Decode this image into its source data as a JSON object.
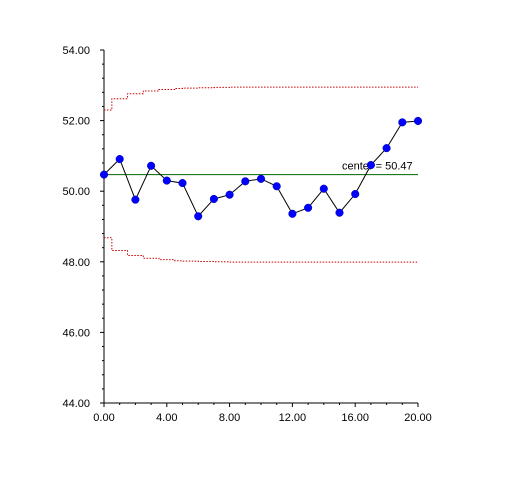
{
  "chart_data": {
    "type": "line",
    "title": "",
    "xlabel": "",
    "ylabel": "",
    "xlim": [
      0,
      20
    ],
    "ylim": [
      44,
      54
    ],
    "x_ticks": [
      0,
      4,
      8,
      12,
      16,
      20
    ],
    "x_tick_labels": [
      "0.00",
      "4.00",
      "8.00",
      "12.00",
      "16.00",
      "20.00"
    ],
    "y_ticks": [
      44,
      46,
      48,
      50,
      52,
      54
    ],
    "y_tick_labels": [
      "44.00",
      "46.00",
      "48.00",
      "50.00",
      "52.00",
      "54.00"
    ],
    "grid": false,
    "legend": "none",
    "series": [
      {
        "x": [
          0,
          1,
          2,
          3,
          4,
          5,
          6,
          7,
          8,
          9,
          10,
          11,
          12,
          13,
          14,
          15,
          16,
          17,
          18,
          19,
          20
        ],
        "y": [
          50.47,
          50.91,
          49.76,
          50.72,
          50.3,
          50.23,
          49.29,
          49.78,
          49.9,
          50.28,
          50.35,
          50.14,
          49.36,
          49.53,
          50.07,
          49.39,
          49.92,
          50.74,
          51.22,
          51.95,
          51.99
        ],
        "color": "#0000ff"
      }
    ],
    "center_line": {
      "value": 50.47,
      "label": "center = 50.47",
      "color": "#006400"
    },
    "upper_limit": {
      "color": "#cc0000",
      "style": "dotted-step",
      "x": [
        0,
        0.5,
        1,
        1.5,
        2,
        2.5,
        3,
        3.5,
        4,
        4.5,
        5,
        6,
        7,
        8,
        20
      ],
      "y": [
        52.3,
        52.62,
        52.62,
        52.76,
        52.76,
        52.84,
        52.84,
        52.88,
        52.88,
        52.91,
        52.92,
        52.93,
        52.94,
        52.95,
        52.95
      ]
    },
    "lower_limit": {
      "color": "#cc0000",
      "style": "dotted-step",
      "x": [
        0,
        0.5,
        1,
        1.5,
        2,
        2.5,
        3,
        3.5,
        4,
        4.5,
        5,
        6,
        7,
        8,
        20
      ],
      "y": [
        48.68,
        48.32,
        48.32,
        48.18,
        48.18,
        48.1,
        48.1,
        48.06,
        48.06,
        48.03,
        48.02,
        48.01,
        48.0,
        47.99,
        47.99
      ]
    }
  }
}
